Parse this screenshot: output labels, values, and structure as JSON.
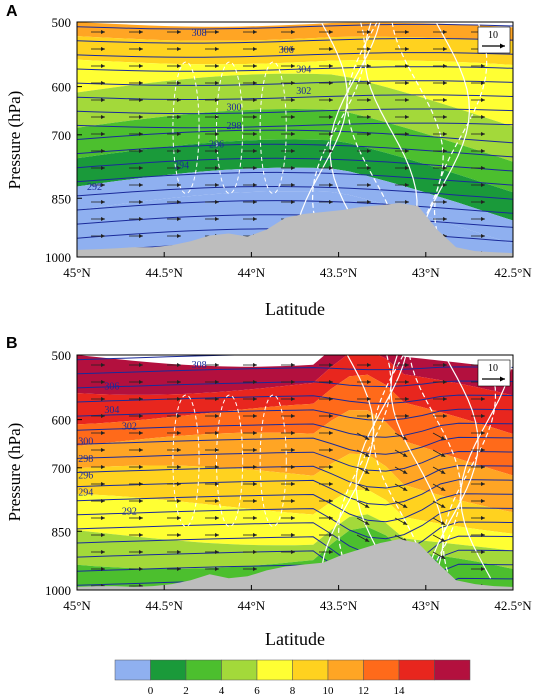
{
  "chart_data": [
    {
      "type": "contour",
      "panel_label": "A",
      "xlabel": "Latitude",
      "ylabel": "Pressure (hPa)",
      "x_ticks": [
        "45°N",
        "44.5°N",
        "44°N",
        "43.5°N",
        "43°N",
        "42.5°N"
      ],
      "y_ticks": [
        "500",
        "600",
        "700",
        "850",
        "1000"
      ],
      "xlim": [
        45,
        42.5
      ],
      "ylim": [
        500,
        1000
      ],
      "reference_vector": "10",
      "isentrope_labels": [
        {
          "value": "308",
          "lat": 44.3,
          "p": 522
        },
        {
          "value": "306",
          "lat": 43.8,
          "p": 548
        },
        {
          "value": "304",
          "lat": 43.7,
          "p": 578
        },
        {
          "value": "302",
          "lat": 43.7,
          "p": 615
        },
        {
          "value": "300",
          "lat": 44.1,
          "p": 650
        },
        {
          "value": "298",
          "lat": 44.1,
          "p": 688
        },
        {
          "value": "296",
          "lat": 44.2,
          "p": 730
        },
        {
          "value": "294",
          "lat": 44.4,
          "p": 780
        },
        {
          "value": "292",
          "lat": 44.9,
          "p": 830
        }
      ],
      "terrain_p": [
        982,
        980,
        978,
        975,
        975,
        970,
        960,
        945,
        940,
        948,
        930,
        900,
        890,
        885,
        880,
        872,
        868,
        862,
        870,
        930,
        975,
        985,
        988,
        990
      ]
    },
    {
      "type": "contour",
      "panel_label": "B",
      "xlabel": "Latitude",
      "ylabel": "Pressure (hPa)",
      "x_ticks": [
        "45°N",
        "44.5°N",
        "44°N",
        "43.5°N",
        "43°N",
        "42.5°N"
      ],
      "y_ticks": [
        "500",
        "600",
        "700",
        "850",
        "1000"
      ],
      "xlim": [
        45,
        42.5
      ],
      "ylim": [
        500,
        1000
      ],
      "reference_vector": "10",
      "isentrope_labels": [
        {
          "value": "308",
          "lat": 44.3,
          "p": 520
        },
        {
          "value": "306",
          "lat": 44.8,
          "p": 553
        },
        {
          "value": "304",
          "lat": 44.8,
          "p": 590
        },
        {
          "value": "302",
          "lat": 44.7,
          "p": 620
        },
        {
          "value": "300",
          "lat": 44.95,
          "p": 652
        },
        {
          "value": "298",
          "lat": 44.95,
          "p": 688
        },
        {
          "value": "296",
          "lat": 44.95,
          "p": 725
        },
        {
          "value": "294",
          "lat": 44.95,
          "p": 765
        },
        {
          "value": "292",
          "lat": 44.7,
          "p": 810
        }
      ],
      "terrain_p": [
        992,
        990,
        990,
        992,
        990,
        985,
        975,
        960,
        970,
        965,
        950,
        940,
        935,
        930,
        910,
        895,
        880,
        870,
        880,
        930,
        975,
        985,
        990,
        992
      ]
    }
  ],
  "colorbar": {
    "tick_labels": [
      "0",
      "2",
      "4",
      "6",
      "8",
      "10",
      "12",
      "14"
    ],
    "colors": [
      "#8fb0f0",
      "#1a9a3a",
      "#4cbf2e",
      "#a3d93a",
      "#ffff33",
      "#ffd21f",
      "#ffa524",
      "#ff6a1a",
      "#e8261e",
      "#b3103e"
    ]
  }
}
